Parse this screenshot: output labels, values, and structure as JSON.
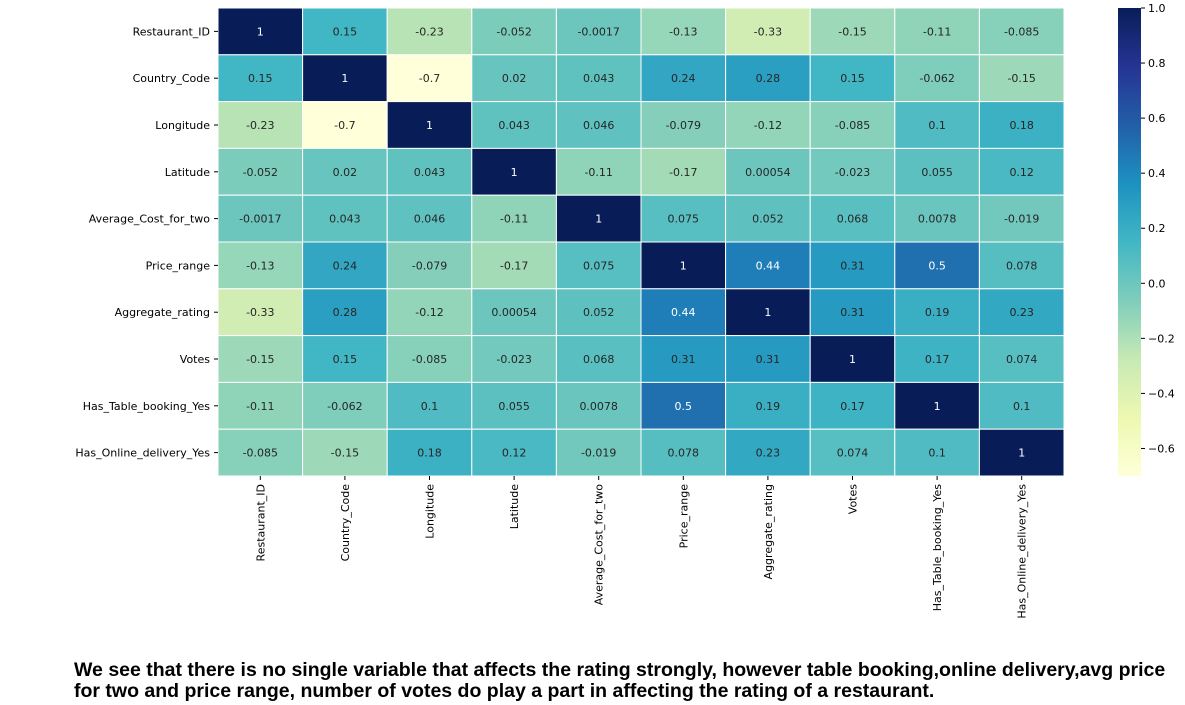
{
  "chart_data": {
    "type": "heatmap",
    "colormap": "YlGnBu",
    "vmin": -0.7,
    "vmax": 1.0,
    "rows": [
      "Restaurant_ID",
      "Country_Code",
      "Longitude",
      "Latitude",
      "Average_Cost_for_two",
      "Price_range",
      "Aggregate_rating",
      "Votes",
      "Has_Table_booking_Yes",
      "Has_Online_delivery_Yes"
    ],
    "columns": [
      "Restaurant_ID",
      "Country_Code",
      "Longitude",
      "Latitude",
      "Average_Cost_for_two",
      "Price_range",
      "Aggregate_rating",
      "Votes",
      "Has_Table_booking_Yes",
      "Has_Online_delivery_Yes"
    ],
    "values": [
      [
        1,
        0.15,
        -0.23,
        -0.052,
        -0.0017,
        -0.13,
        -0.33,
        -0.15,
        -0.11,
        -0.085
      ],
      [
        0.15,
        1,
        -0.7,
        0.02,
        0.043,
        0.24,
        0.28,
        0.15,
        -0.062,
        -0.15
      ],
      [
        -0.23,
        -0.7,
        1,
        0.043,
        0.046,
        -0.079,
        -0.12,
        -0.085,
        0.1,
        0.18
      ],
      [
        -0.052,
        0.02,
        0.043,
        1,
        -0.11,
        -0.17,
        0.00054,
        -0.023,
        0.055,
        0.12
      ],
      [
        -0.0017,
        0.043,
        0.046,
        -0.11,
        1,
        0.075,
        0.052,
        0.068,
        0.0078,
        -0.019
      ],
      [
        -0.13,
        0.24,
        -0.079,
        -0.17,
        0.075,
        1,
        0.44,
        0.31,
        0.5,
        0.078
      ],
      [
        -0.33,
        0.28,
        -0.12,
        0.00054,
        0.052,
        0.44,
        1,
        0.31,
        0.19,
        0.23
      ],
      [
        -0.15,
        0.15,
        -0.085,
        -0.023,
        0.068,
        0.31,
        0.31,
        1,
        0.17,
        0.074
      ],
      [
        -0.11,
        -0.062,
        0.1,
        0.055,
        0.0078,
        0.5,
        0.19,
        0.17,
        1,
        0.1
      ],
      [
        -0.085,
        -0.15,
        0.18,
        0.12,
        -0.019,
        0.078,
        0.23,
        0.074,
        0.1,
        1
      ]
    ],
    "colorbar_ticks": [
      1.0,
      0.8,
      0.6,
      0.4,
      0.2,
      0.0,
      -0.2,
      -0.4,
      -0.6
    ],
    "colorbar_tick_labels": [
      "1.0",
      "0.8",
      "0.6",
      "0.4",
      "0.2",
      "0.0",
      "−0.2",
      "−0.4",
      "−0.6"
    ],
    "annotated": true,
    "grid_lines": true
  },
  "caption": "We see that there is no single variable that affects the rating strongly, however table booking,online delivery,avg price for two and price range, number of votes do play a part in affecting the rating of a restaurant."
}
